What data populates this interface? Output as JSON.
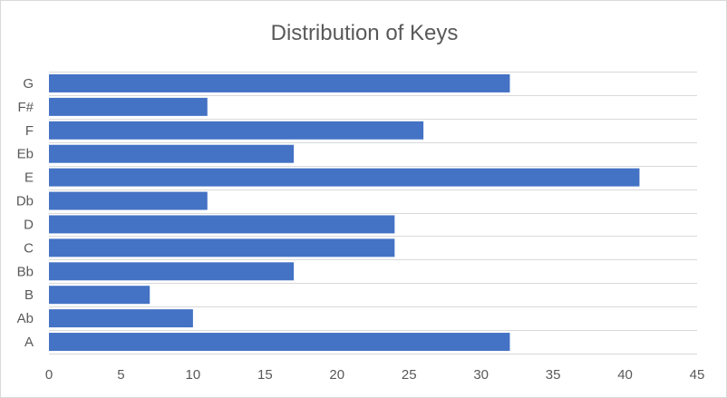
{
  "chart_data": {
    "type": "bar",
    "orientation": "horizontal",
    "title": "Distribution of Keys",
    "xlabel": "",
    "ylabel": "",
    "categories": [
      "A",
      "Ab",
      "B",
      "Bb",
      "C",
      "D",
      "Db",
      "E",
      "Eb",
      "F",
      "F#",
      "G"
    ],
    "values": [
      32,
      10,
      7,
      17,
      24,
      24,
      11,
      41,
      17,
      26,
      11,
      32
    ],
    "xlim": [
      0,
      45
    ],
    "xticks": [
      0,
      5,
      10,
      15,
      20,
      25,
      30,
      35,
      40,
      45
    ],
    "grid": true,
    "legend": "none",
    "colors": {
      "bar": "#4472c4",
      "grid": "#d9d9d9",
      "text": "#595959"
    }
  }
}
